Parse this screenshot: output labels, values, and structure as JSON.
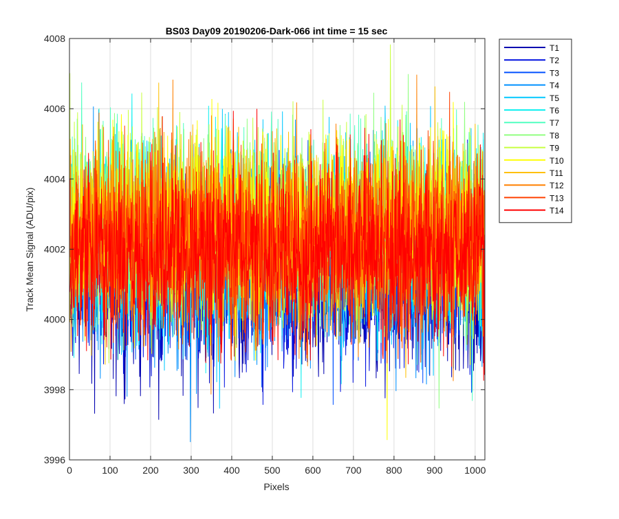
{
  "chart_data": {
    "type": "line",
    "title": "BS03 Day09 20190206-Dark-066 int time = 15 sec",
    "xlabel": "Pixels",
    "ylabel": "Track Mean Signal (ADU/pix)",
    "xlim": [
      0,
      1024
    ],
    "ylim": [
      3996,
      4008
    ],
    "xticks": [
      0,
      100,
      200,
      300,
      400,
      500,
      600,
      700,
      800,
      900,
      1000
    ],
    "yticks": [
      3996,
      3998,
      4000,
      4002,
      4004,
      4006,
      4008
    ],
    "grid": true,
    "legend_position": "outside-top-right",
    "point_count": 1024,
    "series": [
      {
        "name": "T1",
        "color": "#0000b0",
        "mean": 4001.0,
        "spread": 1.25
      },
      {
        "name": "T2",
        "color": "#0010e0",
        "mean": 4001.3,
        "spread": 1.25
      },
      {
        "name": "T3",
        "color": "#0050ff",
        "mean": 4001.6,
        "spread": 1.25
      },
      {
        "name": "T4",
        "color": "#0090ff",
        "mean": 4001.9,
        "spread": 1.3
      },
      {
        "name": "T5",
        "color": "#00c8ff",
        "mean": 4002.2,
        "spread": 1.3
      },
      {
        "name": "T6",
        "color": "#10f0f0",
        "mean": 4002.4,
        "spread": 1.3
      },
      {
        "name": "T7",
        "color": "#50ffc0",
        "mean": 4002.6,
        "spread": 1.3
      },
      {
        "name": "T8",
        "color": "#90ff80",
        "mean": 4002.7,
        "spread": 1.3
      },
      {
        "name": "T9",
        "color": "#c8ff40",
        "mean": 4002.8,
        "spread": 1.3
      },
      {
        "name": "T10",
        "color": "#ffff00",
        "mean": 4002.7,
        "spread": 1.3
      },
      {
        "name": "T11",
        "color": "#ffc000",
        "mean": 4002.5,
        "spread": 1.3
      },
      {
        "name": "T12",
        "color": "#ff8000",
        "mean": 4002.3,
        "spread": 1.3
      },
      {
        "name": "T13",
        "color": "#ff4000",
        "mean": 4002.1,
        "spread": 1.3
      },
      {
        "name": "T14",
        "color": "#ff0000",
        "mean": 4001.9,
        "spread": 1.3
      }
    ]
  }
}
